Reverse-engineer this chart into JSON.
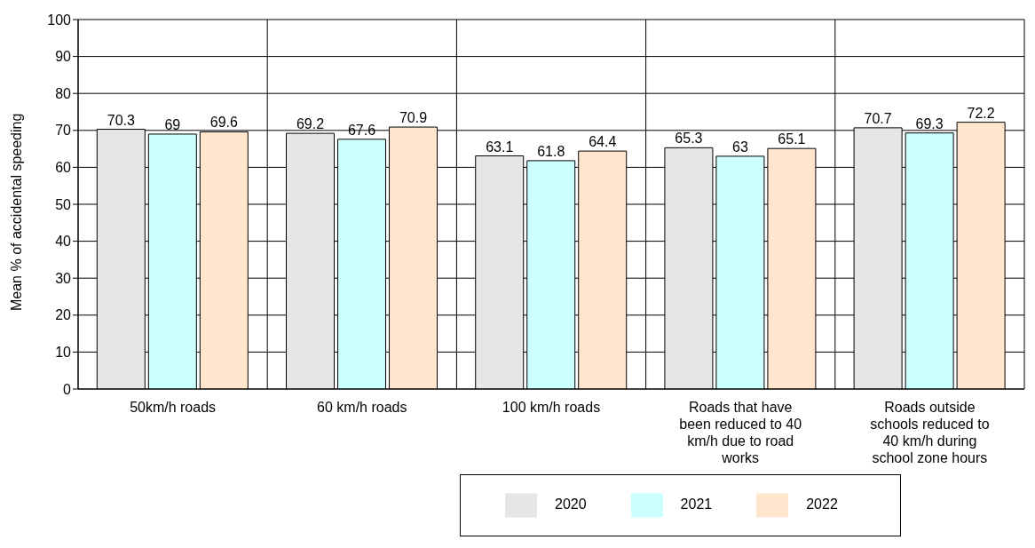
{
  "chart_data": {
    "type": "bar",
    "ylabel": "Mean % of accidental speeding",
    "categories": [
      "50km/h roads",
      "60 km/h roads",
      "100 km/h roads",
      "Roads that have been reduced to 40 km/h due to road works",
      "Roads outside schools reduced to 40 km/h during school zone hours"
    ],
    "series": [
      {
        "name": "2020",
        "color": "#e6e6e6",
        "values": [
          70.3,
          69.2,
          63.1,
          65.3,
          70.7
        ]
      },
      {
        "name": "2021",
        "color": "#ccffff",
        "values": [
          69,
          67.6,
          61.8,
          63,
          69.3
        ]
      },
      {
        "name": "2022",
        "color": "#ffe6cc",
        "values": [
          69.6,
          70.9,
          64.4,
          65.1,
          72.2
        ]
      }
    ],
    "ylim": [
      0,
      100
    ],
    "yticks": [
      0,
      10,
      20,
      30,
      40,
      50,
      60,
      70,
      80,
      90,
      100
    ],
    "grid": true,
    "legend": "bottom",
    "data_labels": true
  }
}
